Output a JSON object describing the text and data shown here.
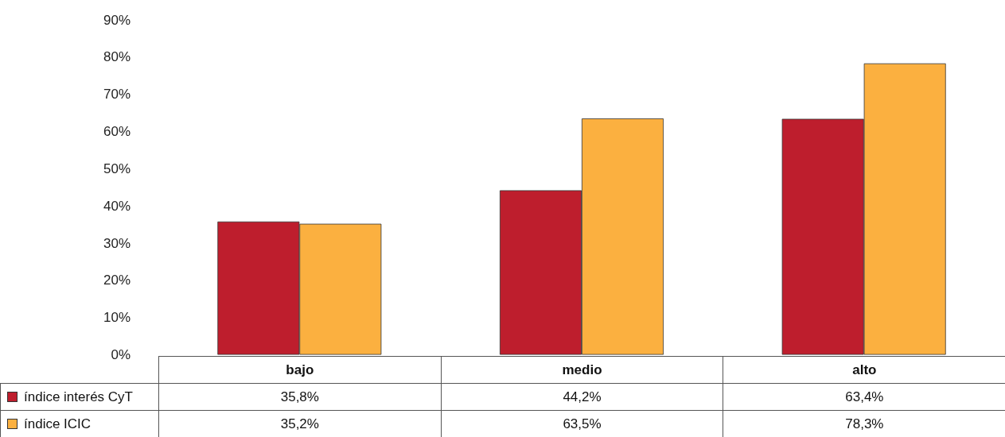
{
  "chart_data": {
    "type": "bar",
    "categories": [
      "bajo",
      "medio",
      "alto"
    ],
    "series": [
      {
        "name": "índice interés CyT",
        "color": "#be1e2d",
        "values": [
          35.8,
          44.2,
          63.4
        ],
        "value_labels": [
          "35,8%",
          "44,2%",
          "63,4%"
        ]
      },
      {
        "name": "índice ICIC",
        "color": "#fbb040",
        "values": [
          35.2,
          63.5,
          78.3
        ],
        "value_labels": [
          "35,2%",
          "63,5%",
          "78,3%"
        ]
      }
    ],
    "ylim": [
      0,
      90
    ],
    "yticks": [
      {
        "value": 0,
        "label": "0%"
      },
      {
        "value": 10,
        "label": "10%"
      },
      {
        "value": 20,
        "label": "20%"
      },
      {
        "value": 30,
        "label": "30%"
      },
      {
        "value": 40,
        "label": "40%"
      },
      {
        "value": 50,
        "label": "50%"
      },
      {
        "value": 60,
        "label": "60%"
      },
      {
        "value": 70,
        "label": "70%"
      },
      {
        "value": 80,
        "label": "80%"
      },
      {
        "value": 90,
        "label": "90%"
      }
    ],
    "grid": false,
    "legend": "bottom left"
  }
}
